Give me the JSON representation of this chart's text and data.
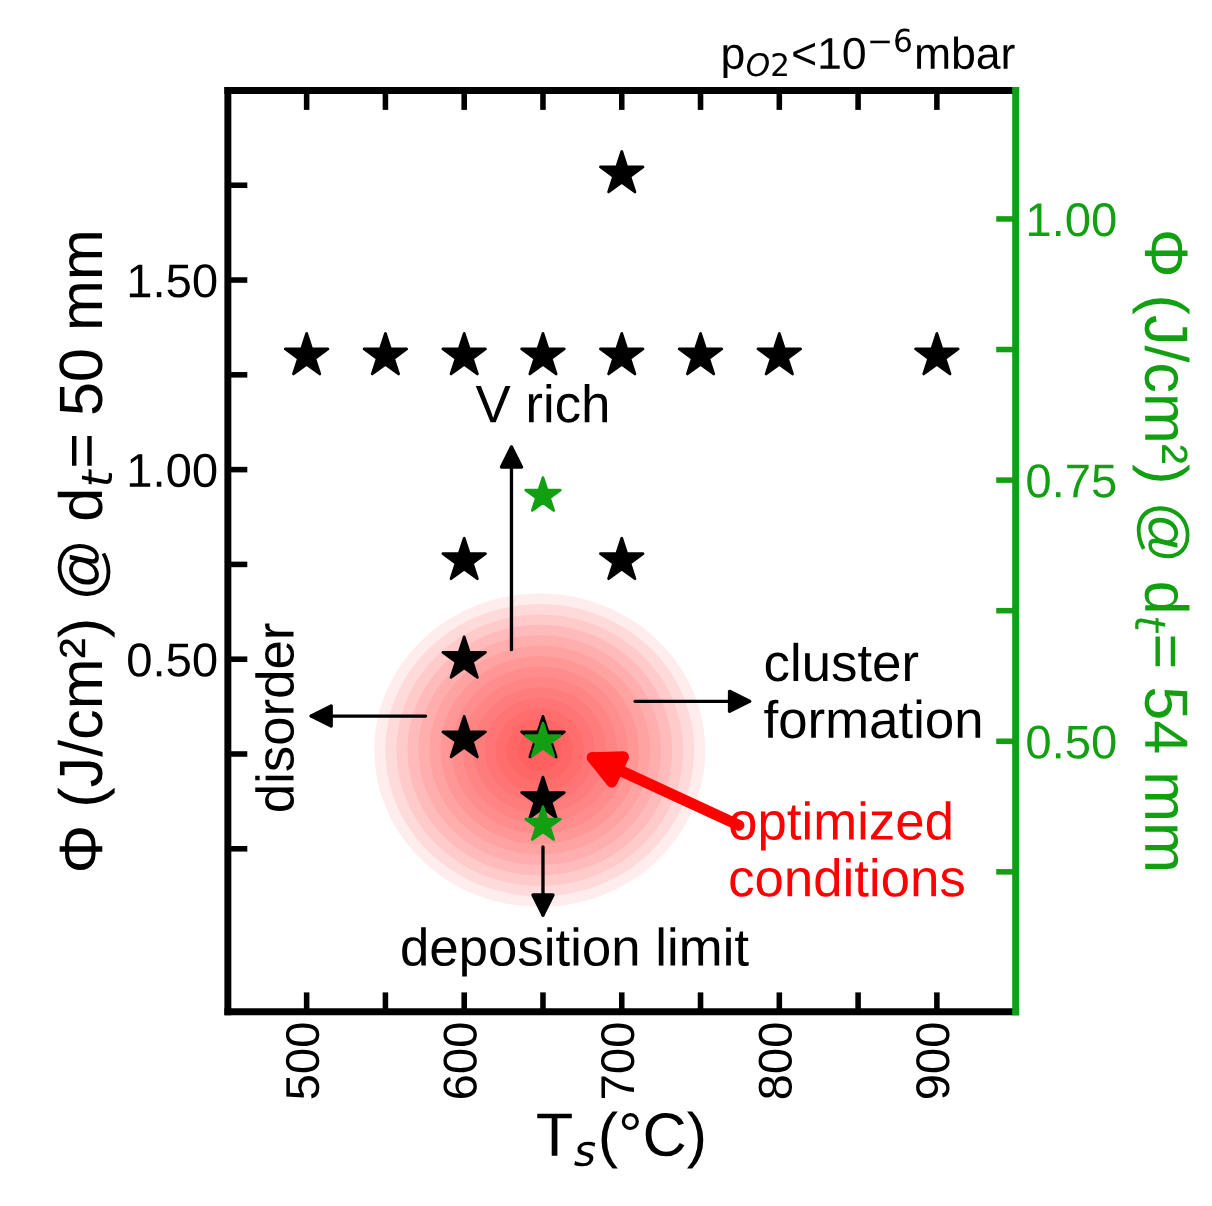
{
  "chart_data": {
    "type": "scatter",
    "xlabel": "T$_{s}$(°C)",
    "ylabel": "Φ (J/cm²) @ d$_{t}$= 50 mm",
    "y2label": "Φ (J/cm²) @ d$_{t}$= 54 mm",
    "xlim": [
      450,
      950
    ],
    "xticks": [
      {
        "value": 450,
        "label": null
      },
      500,
      {
        "value": 550,
        "label": null
      },
      600,
      {
        "value": 650,
        "label": null
      },
      700,
      {
        "value": 750,
        "label": null
      },
      800,
      {
        "value": 850,
        "label": null
      },
      900
    ],
    "ylim": [
      -0.43,
      2.0
    ],
    "yticks": [
      {
        "value": 0,
        "label": null
      },
      {
        "value": 0.25,
        "label": null
      },
      {
        "value": 0.5,
        "label": "0.50"
      },
      {
        "value": 0.75,
        "label": null
      },
      {
        "value": 1.0,
        "label": "1.00"
      },
      {
        "value": 1.25,
        "label": null
      },
      {
        "value": 1.5,
        "label": "1.50"
      },
      {
        "value": 1.75,
        "label": null
      }
    ],
    "y2lim": [
      0.241,
      1.123
    ],
    "y2ticks": [
      {
        "value": 0.375,
        "label": null
      },
      {
        "value": 0.5,
        "label": "0.50"
      },
      {
        "value": 0.625,
        "label": null
      },
      {
        "value": 0.75,
        "label": "0.75"
      },
      {
        "value": 0.875,
        "label": null
      },
      {
        "value": 1.0,
        "label": "1.00"
      }
    ],
    "marker": "star",
    "grid": false,
    "legend": false,
    "series": [
      {
        "color": "#000000",
        "x": [
          500,
          550,
          600,
          650,
          700,
          750,
          800,
          900,
          700,
          600,
          700,
          600,
          600,
          650,
          650
        ],
        "values": [
          1.3,
          1.3,
          1.3,
          1.3,
          1.3,
          1.3,
          1.3,
          1.3,
          1.78,
          0.76,
          0.76,
          0.5,
          0.29,
          0.29,
          0.13
        ]
      },
      {
        "color": "#12a012",
        "axis": "y2",
        "x": [
          650,
          650,
          650
        ],
        "values": [
          0.735,
          0.5,
          0.42
        ]
      }
    ],
    "annotations": [
      "p$_{O2}$<10$^{−6}$mbar",
      "V rich",
      "disorder",
      "cluster\nformation",
      "deposition limit",
      "optimized\nconditions"
    ]
  }
}
